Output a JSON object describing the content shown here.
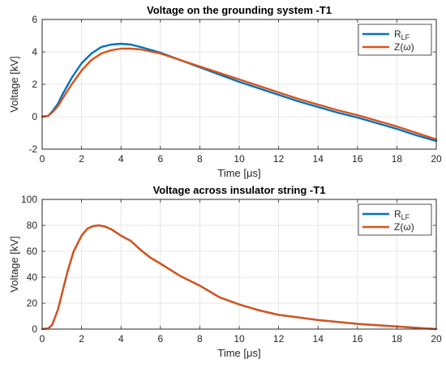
{
  "chart_data": [
    {
      "type": "line",
      "title": "Voltage on the grounding system -T1",
      "xlabel_main": "Time [",
      "xlabel_greek": "μ",
      "xlabel_tail": "s]",
      "ylabel": "Voltage [kV]",
      "xlim": [
        0,
        20
      ],
      "ylim": [
        -2,
        6
      ],
      "xticks": [
        0,
        2,
        4,
        6,
        8,
        10,
        12,
        14,
        16,
        18,
        20
      ],
      "yticks": [
        -2,
        0,
        2,
        4,
        6
      ],
      "grid": true,
      "legend_position": "top-right",
      "series": [
        {
          "label_main": "R",
          "label_sub": "LF",
          "label_tail": "",
          "color": "#0072BD",
          "x": [
            0,
            0.3,
            0.5,
            0.8,
            1.0,
            1.5,
            2.0,
            2.5,
            3.0,
            3.5,
            4.0,
            4.5,
            5.0,
            6.0,
            7.0,
            8.0,
            9.0,
            10.0,
            11.0,
            12.0,
            13.0,
            14.0,
            15.0,
            16.0,
            17.0,
            18.0,
            19.0,
            20.0
          ],
          "y": [
            0,
            0.05,
            0.3,
            0.8,
            1.3,
            2.4,
            3.3,
            3.9,
            4.3,
            4.45,
            4.5,
            4.45,
            4.3,
            3.95,
            3.5,
            3.05,
            2.6,
            2.15,
            1.75,
            1.35,
            0.95,
            0.6,
            0.25,
            -0.05,
            -0.4,
            -0.75,
            -1.15,
            -1.5
          ]
        },
        {
          "label_main": "Z(",
          "label_sub": "",
          "label_tail": "ω)",
          "color": "#D95319",
          "x": [
            0,
            0.3,
            0.5,
            0.8,
            1.0,
            1.5,
            2.0,
            2.5,
            3.0,
            3.5,
            4.0,
            4.5,
            5.0,
            6.0,
            7.0,
            8.0,
            9.0,
            10.0,
            11.0,
            12.0,
            13.0,
            14.0,
            15.0,
            16.0,
            17.0,
            18.0,
            19.0,
            20.0
          ],
          "y": [
            0,
            0.05,
            0.25,
            0.65,
            1.05,
            2.0,
            2.85,
            3.5,
            3.9,
            4.1,
            4.2,
            4.2,
            4.15,
            3.9,
            3.5,
            3.1,
            2.7,
            2.3,
            1.9,
            1.5,
            1.1,
            0.75,
            0.4,
            0.1,
            -0.25,
            -0.6,
            -1.0,
            -1.4
          ]
        }
      ]
    },
    {
      "type": "line",
      "title": "Voltage across insulator string -T1",
      "xlabel_main": "Time [",
      "xlabel_greek": "μ",
      "xlabel_tail": "s]",
      "ylabel": "Voltage [kV]",
      "xlim": [
        0,
        20
      ],
      "ylim": [
        0,
        100
      ],
      "xticks": [
        0,
        2,
        4,
        6,
        8,
        10,
        12,
        14,
        16,
        18,
        20
      ],
      "yticks": [
        0,
        20,
        40,
        60,
        80,
        100
      ],
      "grid": true,
      "legend_position": "top-right",
      "series": [
        {
          "label_main": "R",
          "label_sub": "LF",
          "label_tail": "",
          "color": "#0072BD",
          "x": [
            0,
            0.3,
            0.5,
            0.8,
            1.0,
            1.3,
            1.6,
            2.0,
            2.3,
            2.6,
            2.9,
            3.2,
            3.5,
            4.0,
            4.5,
            5.0,
            5.5,
            6.0,
            7.0,
            8.0,
            9.0,
            10.0,
            11.0,
            12.0,
            13.0,
            14.0,
            15.0,
            16.0,
            17.0,
            18.0,
            19.0,
            20.0
          ],
          "y": [
            0,
            0.5,
            3,
            15,
            27,
            45,
            60,
            72,
            77.5,
            79.5,
            80,
            79,
            77,
            72,
            68,
            61,
            55,
            50.5,
            41,
            33.5,
            24.5,
            19,
            14.5,
            11,
            9,
            7,
            5.5,
            4,
            3,
            2,
            1,
            0
          ]
        },
        {
          "label_main": "Z(",
          "label_sub": "",
          "label_tail": "ω)",
          "color": "#D95319",
          "x": [
            0,
            0.3,
            0.5,
            0.8,
            1.0,
            1.3,
            1.6,
            2.0,
            2.3,
            2.6,
            2.9,
            3.2,
            3.5,
            4.0,
            4.5,
            5.0,
            5.5,
            6.0,
            7.0,
            8.0,
            9.0,
            10.0,
            11.0,
            12.0,
            13.0,
            14.0,
            15.0,
            16.0,
            17.0,
            18.0,
            19.0,
            20.0
          ],
          "y": [
            0,
            0.5,
            3,
            15,
            27,
            45,
            60,
            72,
            77.5,
            79.5,
            80,
            79,
            77,
            72,
            68,
            61,
            55,
            50.5,
            41,
            33.5,
            24.5,
            19,
            14.5,
            11,
            9,
            7,
            5.5,
            4,
            3,
            2,
            1,
            0
          ]
        }
      ]
    }
  ]
}
